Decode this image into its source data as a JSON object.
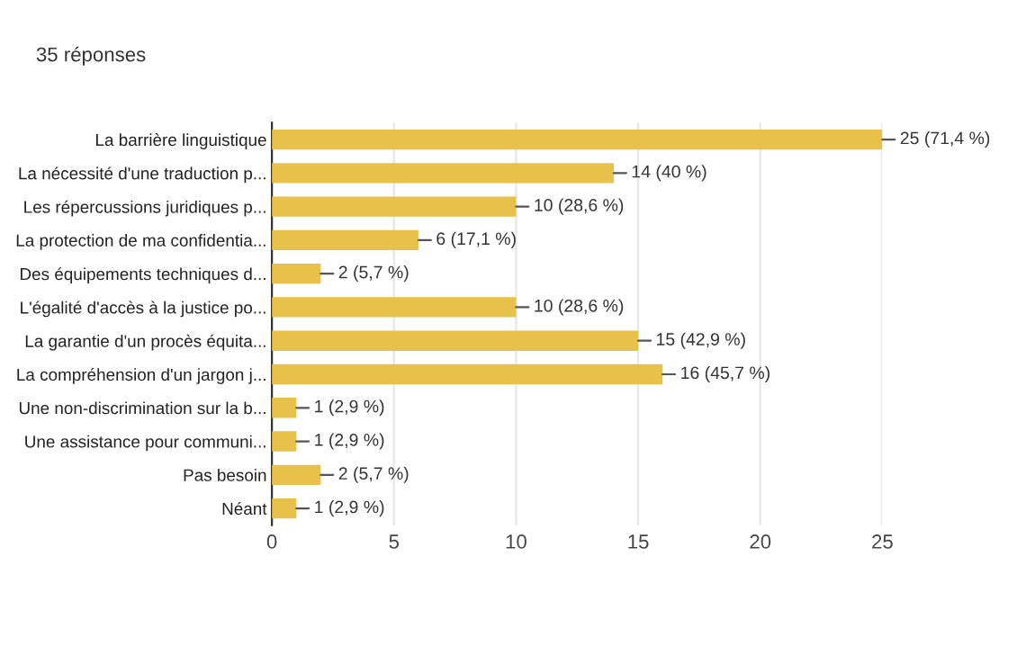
{
  "chart_data": {
    "type": "bar",
    "orientation": "horizontal",
    "title": "35 réponses",
    "categories": [
      "La barrière linguistique",
      "La nécessité d'une traduction p...",
      "Les répercussions juridiques p...",
      "La protection de ma confidentia...",
      "Des équipements techniques d...",
      "L'égalité d'accès à la justice po...",
      "La garantie d'un procès équita...",
      "La compréhension d'un jargon j...",
      "Une non-discrimination sur la b...",
      "Une assistance pour communi...",
      "Pas besoin",
      "Néant"
    ],
    "values": [
      25,
      14,
      10,
      6,
      2,
      10,
      15,
      16,
      1,
      1,
      2,
      1
    ],
    "value_labels": [
      "25 (71,4 %)",
      "14 (40 %)",
      "10 (28,6 %)",
      "6 (17,1 %)",
      "2 (5,7 %)",
      "10 (28,6 %)",
      "15 (42,9 %)",
      "16 (45,7 %)",
      "1 (2,9 %)",
      "1 (2,9 %)",
      "2 (5,7 %)",
      "1 (2,9 %)"
    ],
    "color": "#e8c14a",
    "xlim": [
      0,
      25
    ],
    "xticks": [
      0,
      5,
      10,
      15,
      20,
      25
    ],
    "grid": "x"
  }
}
